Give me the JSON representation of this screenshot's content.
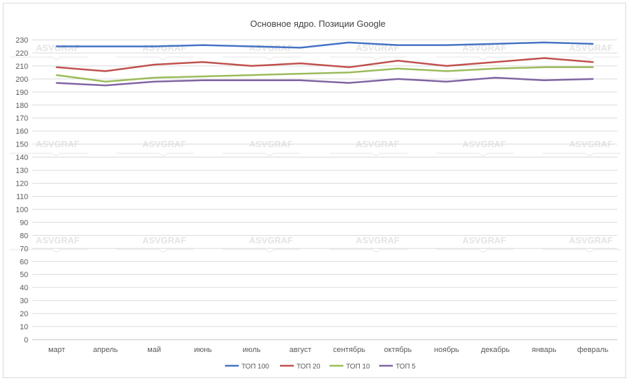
{
  "chart_data": {
    "type": "line",
    "title": "Основное ядро. Позиции Google",
    "xlabel": "",
    "ylabel": "",
    "ylim": [
      0,
      230
    ],
    "ytick_step": 10,
    "grid": true,
    "legend_position": "bottom",
    "watermark": "ASVGRAF",
    "categories": [
      "март",
      "апрель",
      "май",
      "июнь",
      "июль",
      "август",
      "сентябрь",
      "октябрь",
      "ноябрь",
      "декабрь",
      "январь",
      "февраль"
    ],
    "series": [
      {
        "name": "ТОП 100",
        "color": "#4472c4",
        "values": [
          225,
          225,
          225,
          226,
          225,
          224,
          228,
          226,
          226,
          227,
          228,
          227
        ]
      },
      {
        "name": "ТОП 20",
        "color": "#c0504d",
        "values": [
          209,
          206,
          211,
          213,
          210,
          212,
          209,
          214,
          210,
          213,
          216,
          213
        ]
      },
      {
        "name": "ТОП 10",
        "color": "#9bbb59",
        "values": [
          203,
          198,
          201,
          202,
          203,
          204,
          205,
          208,
          206,
          208,
          209,
          209
        ]
      },
      {
        "name": "ТОП 5",
        "color": "#8064a2",
        "values": [
          197,
          195,
          198,
          199,
          199,
          199,
          197,
          200,
          198,
          201,
          199,
          200
        ]
      }
    ]
  }
}
